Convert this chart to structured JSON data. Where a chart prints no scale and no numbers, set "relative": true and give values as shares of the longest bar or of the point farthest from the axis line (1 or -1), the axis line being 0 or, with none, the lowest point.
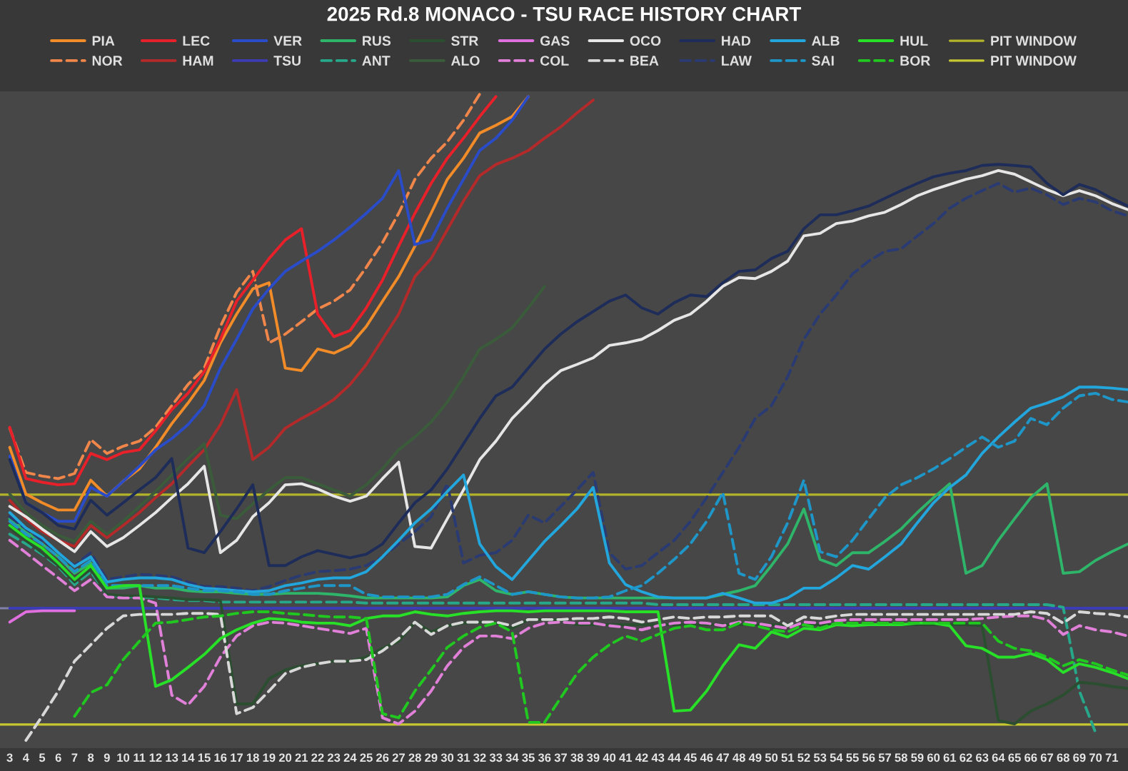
{
  "chart_data": {
    "type": "line",
    "title": "2025 Rd.8 MONACO - TSU RACE HISTORY CHART",
    "relative": true,
    "legend": "top",
    "line_style": "solid",
    "x": [
      3,
      4,
      5,
      6,
      7,
      8,
      9,
      10,
      11,
      12,
      13,
      14,
      15,
      16,
      17,
      18,
      19,
      20,
      21,
      22,
      23,
      24,
      25,
      26,
      27,
      28,
      29,
      30,
      31,
      32,
      33,
      34,
      35,
      36,
      37,
      38,
      39,
      40,
      41,
      42,
      43,
      44,
      45,
      46,
      47,
      48,
      49,
      50,
      51,
      52,
      53,
      54,
      55,
      56,
      57,
      58,
      59,
      60,
      61,
      62,
      63,
      64,
      65,
      66,
      67,
      68,
      69,
      70,
      71,
      72
    ],
    "xlim": [
      2.4,
      72.0
    ],
    "xticks": [
      3,
      4,
      5,
      6,
      7,
      8,
      9,
      10,
      11,
      12,
      13,
      14,
      15,
      16,
      17,
      18,
      19,
      20,
      21,
      22,
      23,
      24,
      25,
      26,
      27,
      28,
      29,
      30,
      31,
      32,
      33,
      34,
      35,
      36,
      37,
      38,
      39,
      40,
      41,
      42,
      43,
      44,
      45,
      46,
      47,
      48,
      49,
      50,
      51,
      52,
      53,
      54,
      55,
      56,
      57,
      58,
      59,
      60,
      61,
      62,
      63,
      64,
      65,
      66,
      67,
      68,
      69,
      70,
      71
    ],
    "ref_lines": [
      {
        "axis": "y",
        "value": 0.221,
        "label": "PIT WINDOW",
        "color": "#b4b42a"
      },
      {
        "axis": "y",
        "value": -0.226,
        "label": "PIT WINDOW",
        "color": "#c8c830"
      }
    ],
    "series": [
      {
        "name": "PIA",
        "color": "#f28c28",
        "values": [
          0.313,
          0.222,
          0.205,
          0.191,
          0.191,
          0.249,
          0.218,
          0.247,
          0.271,
          0.313,
          0.359,
          0.399,
          0.443,
          0.516,
          0.572,
          0.621,
          0.633,
          0.467,
          0.462,
          0.504,
          0.496,
          0.511,
          0.548,
          0.597,
          0.645,
          0.704,
          0.768,
          0.834,
          0.875,
          0.924,
          0.939,
          0.956,
          0.995,
          null,
          null,
          null,
          null,
          null,
          null,
          null,
          null,
          null,
          null,
          null,
          null,
          null,
          null,
          null,
          null,
          null,
          null,
          null,
          null,
          null,
          null,
          null,
          null,
          null,
          null,
          null,
          null,
          null,
          null,
          null,
          null,
          null,
          null,
          null,
          null,
          null
        ]
      },
      {
        "name": "NOR",
        "color": "#f0864a",
        "line_style": "dashed",
        "values": [
          0.35,
          0.264,
          0.257,
          0.252,
          0.262,
          0.328,
          0.301,
          0.315,
          0.325,
          0.352,
          0.394,
          0.435,
          0.467,
          0.548,
          0.614,
          0.655,
          0.516,
          0.533,
          0.557,
          0.582,
          0.597,
          0.619,
          0.663,
          0.711,
          0.768,
          0.834,
          0.875,
          0.907,
          0.949,
          1.0,
          null,
          null,
          null,
          null,
          null,
          null,
          null,
          null,
          null,
          null,
          null,
          null,
          null,
          null,
          null,
          null,
          null,
          null,
          null,
          null,
          null,
          null,
          null,
          null,
          null,
          null,
          null,
          null,
          null,
          null,
          null,
          null,
          null,
          null,
          null,
          null,
          null,
          null,
          null,
          null
        ]
      },
      {
        "name": "LEC",
        "color": "#e8202a",
        "values": [
          0.352,
          0.252,
          0.245,
          0.24,
          0.242,
          0.301,
          0.289,
          0.303,
          0.308,
          0.345,
          0.386,
          0.418,
          0.46,
          0.523,
          0.597,
          0.638,
          0.68,
          0.716,
          0.738,
          0.572,
          0.528,
          0.54,
          0.584,
          0.638,
          0.704,
          0.768,
          0.826,
          0.875,
          0.914,
          0.956,
          0.995,
          null,
          null,
          null,
          null,
          null,
          null,
          null,
          null,
          null,
          null,
          null,
          null,
          null,
          null,
          null,
          null,
          null,
          null,
          null,
          null,
          null,
          null,
          null,
          null,
          null,
          null,
          null,
          null,
          null,
          null,
          null,
          null,
          null,
          null,
          null,
          null,
          null,
          null,
          null
        ]
      },
      {
        "name": "HAM",
        "color": "#b42a2a",
        "values": [
          0.21,
          0.174,
          0.149,
          0.132,
          0.12,
          0.161,
          0.137,
          0.161,
          0.186,
          0.215,
          0.242,
          0.276,
          0.308,
          0.357,
          0.425,
          0.289,
          0.313,
          0.35,
          0.369,
          0.386,
          0.406,
          0.435,
          0.474,
          0.523,
          0.572,
          0.645,
          0.68,
          0.736,
          0.792,
          0.841,
          0.863,
          0.875,
          0.89,
          0.914,
          0.936,
          0.963,
          0.988,
          null,
          null,
          null,
          null,
          null,
          null,
          null,
          null,
          null,
          null,
          null,
          null,
          null,
          null,
          null,
          null,
          null,
          null,
          null,
          null,
          null,
          null,
          null,
          null,
          null,
          null,
          null,
          null,
          null,
          null,
          null,
          null,
          null
        ]
      },
      {
        "name": "VER",
        "color": "#2a4cc8",
        "values": [
          0.296,
          0.205,
          0.186,
          0.169,
          0.169,
          0.235,
          0.218,
          0.247,
          0.276,
          0.308,
          0.33,
          0.357,
          0.394,
          0.467,
          0.523,
          0.582,
          0.621,
          0.655,
          0.675,
          0.694,
          0.716,
          0.741,
          0.768,
          0.797,
          0.851,
          0.707,
          0.716,
          0.778,
          0.834,
          0.89,
          0.914,
          0.949,
          0.995,
          null,
          null,
          null,
          null,
          null,
          null,
          null,
          null,
          null,
          null,
          null,
          null,
          null,
          null,
          null,
          null,
          null,
          null,
          null,
          null,
          null,
          null,
          null,
          null,
          null,
          null,
          null,
          null,
          null,
          null,
          null,
          null,
          null,
          null,
          null,
          null,
          null
        ]
      },
      {
        "name": "TSU",
        "color": "#3c3cb4",
        "values": [
          0,
          0,
          0,
          0,
          0,
          0,
          0,
          0,
          0,
          0,
          0,
          0,
          0,
          0,
          0,
          0,
          0,
          0,
          0,
          0,
          0,
          0,
          0,
          0,
          0,
          0,
          0,
          0,
          0,
          0,
          0,
          0,
          0,
          0,
          0,
          0,
          0,
          0,
          0,
          0,
          0,
          0,
          0,
          0,
          0,
          0,
          0,
          0,
          0,
          0,
          0,
          0,
          0,
          0,
          0,
          0,
          0,
          0,
          0,
          0,
          0,
          0,
          0,
          0,
          0,
          0,
          0,
          0,
          0,
          0
        ]
      },
      {
        "name": "RUS",
        "color": "#2fb56a",
        "values": [
          0.174,
          0.149,
          0.125,
          0.1,
          0.068,
          0.088,
          0.039,
          0.039,
          0.044,
          0.039,
          0.039,
          0.034,
          0.032,
          0.032,
          0.029,
          0.027,
          0.027,
          0.029,
          0.029,
          0.029,
          0.027,
          0.024,
          0.02,
          0.02,
          0.02,
          0.02,
          0.02,
          0.022,
          0.044,
          0.056,
          0.034,
          0.027,
          0.032,
          0.027,
          0.022,
          0.02,
          0.02,
          0.02,
          0.02,
          0.02,
          0.02,
          0.02,
          0.02,
          0.02,
          0.027,
          0.034,
          0.044,
          0.083,
          0.125,
          0.193,
          0.095,
          0.083,
          0.108,
          0.108,
          0.13,
          0.154,
          0.186,
          0.215,
          0.242,
          0.068,
          0.083,
          0.132,
          0.174,
          0.215,
          0.242,
          0.068,
          0.071,
          0.093,
          0.11,
          0.125
        ]
      },
      {
        "name": "ANT",
        "color": "#27a88a",
        "line_style": "dashed",
        "values": [
          0.144,
          0.125,
          0.105,
          0.081,
          0.046,
          0.071,
          0.027,
          0.022,
          0.022,
          0.02,
          0.017,
          0.015,
          0.015,
          0.012,
          0.012,
          0.012,
          0.012,
          0.012,
          0.012,
          0.012,
          0.012,
          0.012,
          0.01,
          0.01,
          0.01,
          0.01,
          0.01,
          0.01,
          0.01,
          0.01,
          0.01,
          0.01,
          0.01,
          0.01,
          0.01,
          0.01,
          0.01,
          0.01,
          0.01,
          0.01,
          0.007,
          0.007,
          0.007,
          0.007,
          0.007,
          0.007,
          0.007,
          0.007,
          0.007,
          0.007,
          0.007,
          0.007,
          0.007,
          0.007,
          0.007,
          0.007,
          0.007,
          0.007,
          0.007,
          0.007,
          0.007,
          0.007,
          0.007,
          0.007,
          0.007,
          0.002,
          -0.161,
          -0.242,
          null,
          null
        ]
      },
      {
        "name": "STR",
        "color": "#2b4e30",
        "values": [
          0.156,
          0.132,
          0.108,
          0.083,
          0.051,
          0.076,
          0.027,
          0.024,
          0.024,
          0.022,
          0.02,
          0.017,
          0.017,
          0.015,
          -0.186,
          -0.186,
          -0.137,
          -0.12,
          -0.112,
          -0.108,
          -0.103,
          -0.103,
          -0.095,
          -0.078,
          -0.064,
          -0.027,
          -0.046,
          -0.034,
          -0.029,
          -0.027,
          -0.029,
          -0.039,
          -0.022,
          -0.022,
          -0.022,
          -0.032,
          -0.032,
          -0.032,
          -0.032,
          -0.032,
          -0.032,
          -0.032,
          -0.032,
          -0.032,
          -0.032,
          -0.032,
          -0.032,
          -0.032,
          -0.032,
          -0.032,
          -0.032,
          -0.032,
          -0.032,
          -0.032,
          -0.032,
          -0.032,
          -0.032,
          -0.032,
          -0.032,
          -0.032,
          -0.034,
          -0.218,
          -0.225,
          -0.2,
          -0.186,
          -0.169,
          -0.144,
          -0.147,
          -0.152,
          -0.156
        ]
      },
      {
        "name": "ALO",
        "color": "#3a5c3a",
        "values": [
          0.222,
          0.186,
          0.161,
          0.142,
          0.13,
          0.169,
          0.144,
          0.169,
          0.198,
          0.227,
          0.259,
          0.291,
          0.32,
          0.181,
          0.174,
          0.203,
          0.23,
          0.254,
          0.254,
          0.242,
          0.23,
          0.218,
          0.24,
          0.271,
          0.308,
          0.333,
          0.362,
          0.401,
          0.45,
          0.504,
          0.523,
          0.545,
          0.584,
          0.626,
          null,
          null,
          null,
          null,
          null,
          null,
          null,
          null,
          null,
          null,
          null,
          null,
          null,
          null,
          null,
          null,
          null,
          null,
          null,
          null,
          null,
          null,
          null,
          null,
          null,
          null,
          null,
          null,
          null,
          null,
          null,
          null,
          null,
          null,
          null,
          null
        ]
      },
      {
        "name": "GAS",
        "color": "#e070e0",
        "values": [
          -0.027,
          -0.007,
          -0.005,
          -0.005,
          -0.005,
          null,
          null,
          null,
          null,
          null,
          null,
          null,
          null,
          null,
          null,
          null,
          null,
          null,
          null,
          null,
          null,
          null,
          null,
          null,
          null,
          null,
          null,
          null,
          null,
          null,
          null,
          null,
          null,
          null,
          null,
          null,
          null,
          null,
          null,
          null,
          null,
          null,
          null,
          null,
          null,
          null,
          null,
          null,
          null,
          null,
          null,
          null,
          null,
          null,
          null,
          null,
          null,
          null,
          null,
          null,
          null,
          null,
          null,
          null,
          null,
          null,
          null,
          null,
          null,
          null
        ]
      },
      {
        "name": "COL",
        "color": "#e080d8",
        "line_style": "dashed",
        "values": [
          0.132,
          0.108,
          0.083,
          0.059,
          0.034,
          0.056,
          0.022,
          0.02,
          0.02,
          0.01,
          -0.169,
          -0.188,
          -0.152,
          -0.095,
          -0.054,
          -0.034,
          -0.027,
          -0.029,
          -0.034,
          -0.039,
          -0.044,
          -0.049,
          -0.039,
          -0.213,
          -0.225,
          -0.2,
          -0.161,
          -0.112,
          -0.076,
          -0.054,
          -0.054,
          -0.059,
          -0.039,
          -0.029,
          -0.027,
          -0.029,
          -0.029,
          -0.034,
          -0.037,
          -0.042,
          -0.034,
          -0.029,
          -0.027,
          -0.029,
          -0.034,
          -0.027,
          -0.029,
          -0.034,
          -0.039,
          -0.027,
          -0.029,
          -0.024,
          -0.022,
          -0.022,
          -0.022,
          -0.022,
          -0.022,
          -0.022,
          -0.022,
          -0.022,
          -0.02,
          -0.017,
          -0.015,
          -0.015,
          -0.022,
          -0.051,
          -0.034,
          -0.042,
          -0.046,
          -0.054
        ]
      },
      {
        "name": "OCO",
        "color": "#e6e6e6",
        "values": [
          0.198,
          0.178,
          0.154,
          0.132,
          0.11,
          0.149,
          0.12,
          0.137,
          0.161,
          0.186,
          0.215,
          0.242,
          0.276,
          0.108,
          0.132,
          0.178,
          0.205,
          0.24,
          0.242,
          0.232,
          0.218,
          0.208,
          0.218,
          0.252,
          0.284,
          0.12,
          0.117,
          0.174,
          0.23,
          0.289,
          0.325,
          0.369,
          0.401,
          0.435,
          0.462,
          0.474,
          0.487,
          0.511,
          0.516,
          0.523,
          0.54,
          0.56,
          0.572,
          0.597,
          0.626,
          0.643,
          0.641,
          0.655,
          0.675,
          0.724,
          0.729,
          0.748,
          0.753,
          0.763,
          0.77,
          0.785,
          0.802,
          0.814,
          0.824,
          0.834,
          0.841,
          0.851,
          0.844,
          0.829,
          0.814,
          0.802,
          0.812,
          0.802,
          0.787,
          0.775
        ]
      },
      {
        "name": "BEA",
        "color": "#d8d8d8",
        "line_style": "dashed",
        "values": [
          null,
          -0.257,
          -0.21,
          -0.161,
          -0.103,
          -0.071,
          -0.039,
          -0.015,
          -0.012,
          -0.012,
          -0.012,
          -0.01,
          -0.01,
          -0.012,
          -0.205,
          -0.193,
          -0.161,
          -0.127,
          -0.115,
          -0.108,
          -0.103,
          -0.103,
          -0.1,
          -0.083,
          -0.059,
          -0.027,
          -0.051,
          -0.034,
          -0.027,
          -0.027,
          -0.027,
          -0.034,
          -0.022,
          -0.022,
          -0.022,
          -0.02,
          -0.02,
          -0.017,
          -0.02,
          -0.027,
          -0.022,
          -0.017,
          -0.02,
          -0.017,
          -0.017,
          -0.015,
          -0.015,
          -0.015,
          -0.034,
          -0.017,
          -0.02,
          -0.015,
          -0.012,
          -0.012,
          -0.012,
          -0.012,
          -0.012,
          -0.012,
          -0.012,
          -0.012,
          -0.012,
          -0.012,
          -0.012,
          -0.007,
          -0.01,
          -0.029,
          -0.007,
          -0.01,
          -0.012,
          -0.017
        ]
      },
      {
        "name": "HAD",
        "color": "#1e2c5a",
        "values": [
          0.289,
          0.205,
          0.186,
          0.161,
          0.154,
          0.21,
          0.181,
          0.205,
          0.23,
          0.254,
          0.291,
          0.117,
          0.108,
          0.149,
          0.193,
          0.24,
          0.083,
          0.083,
          0.1,
          0.112,
          0.105,
          0.098,
          0.105,
          0.125,
          0.166,
          0.205,
          0.23,
          0.271,
          0.32,
          0.369,
          0.413,
          0.43,
          0.467,
          0.504,
          0.533,
          0.557,
          0.577,
          0.597,
          0.609,
          0.584,
          0.572,
          0.594,
          0.609,
          0.606,
          0.633,
          0.655,
          0.658,
          0.68,
          0.694,
          0.738,
          0.765,
          0.765,
          0.773,
          0.782,
          0.797,
          0.812,
          0.826,
          0.839,
          0.846,
          0.851,
          0.861,
          0.863,
          0.861,
          0.858,
          0.826,
          0.804,
          0.824,
          0.814,
          0.797,
          0.782
        ]
      },
      {
        "name": "LAW",
        "color": "#2a3a72",
        "line_style": "dashed",
        "values": [
          0.178,
          0.154,
          0.132,
          0.108,
          0.083,
          0.108,
          0.056,
          0.061,
          0.066,
          0.064,
          0.061,
          0.051,
          0.042,
          0.042,
          0.039,
          0.034,
          0.042,
          0.054,
          0.064,
          0.071,
          0.073,
          0.076,
          0.083,
          0.1,
          0.125,
          0.149,
          0.178,
          0.242,
          0.088,
          0.103,
          0.108,
          0.132,
          0.181,
          0.166,
          0.198,
          0.23,
          0.264,
          0.108,
          0.076,
          0.083,
          0.108,
          0.132,
          0.169,
          0.215,
          0.264,
          0.313,
          0.369,
          0.394,
          0.45,
          0.523,
          0.572,
          0.609,
          0.65,
          0.675,
          0.694,
          0.699,
          0.724,
          0.748,
          0.778,
          0.797,
          0.812,
          0.826,
          0.809,
          0.817,
          0.804,
          0.785,
          0.797,
          0.79,
          0.773,
          0.763
        ]
      },
      {
        "name": "ALB",
        "color": "#22a6dc",
        "values": [
          0.186,
          0.156,
          0.137,
          0.108,
          0.081,
          0.1,
          0.051,
          0.056,
          0.059,
          0.059,
          0.056,
          0.046,
          0.039,
          0.037,
          0.034,
          0.032,
          0.034,
          0.044,
          0.049,
          0.056,
          0.059,
          0.059,
          0.071,
          0.1,
          0.132,
          0.166,
          0.193,
          0.227,
          0.259,
          0.125,
          0.081,
          0.056,
          0.093,
          0.13,
          0.161,
          0.193,
          0.235,
          0.088,
          0.046,
          0.032,
          0.022,
          0.02,
          0.02,
          0.02,
          0.029,
          0.02,
          0.01,
          0.01,
          0.02,
          0.039,
          0.039,
          0.059,
          0.083,
          0.076,
          0.1,
          0.125,
          0.166,
          0.205,
          0.235,
          0.259,
          0.301,
          0.333,
          0.362,
          0.389,
          0.399,
          0.411,
          0.43,
          0.43,
          0.428,
          0.425
        ]
      },
      {
        "name": "SAI",
        "color": "#1e96c8",
        "line_style": "dashed",
        "values": [
          0.169,
          0.144,
          0.125,
          0.1,
          0.071,
          0.093,
          0.044,
          0.044,
          0.044,
          0.044,
          0.044,
          0.039,
          0.034,
          0.034,
          0.032,
          0.027,
          0.027,
          0.034,
          0.039,
          0.044,
          0.044,
          0.044,
          0.027,
          0.022,
          0.022,
          0.022,
          0.022,
          0.027,
          0.046,
          0.061,
          0.044,
          0.027,
          0.032,
          0.027,
          0.022,
          0.02,
          0.02,
          0.022,
          0.034,
          0.044,
          0.068,
          0.095,
          0.125,
          0.169,
          0.225,
          0.068,
          0.056,
          0.1,
          0.166,
          0.249,
          0.11,
          0.1,
          0.132,
          0.174,
          0.215,
          0.24,
          0.254,
          0.271,
          0.291,
          0.313,
          0.333,
          0.313,
          0.325,
          0.369,
          0.357,
          0.389,
          0.413,
          0.418,
          0.406,
          0.401
        ]
      },
      {
        "name": "HUL",
        "color": "#28e028",
        "values": [
          0.161,
          0.137,
          0.117,
          0.088,
          0.056,
          0.083,
          0.039,
          0.044,
          0.044,
          -0.152,
          -0.139,
          -0.115,
          -0.09,
          -0.059,
          -0.042,
          -0.029,
          -0.02,
          -0.022,
          -0.027,
          -0.029,
          -0.029,
          -0.034,
          -0.02,
          -0.015,
          -0.015,
          -0.007,
          -0.012,
          -0.015,
          -0.01,
          -0.007,
          -0.005,
          -0.005,
          -0.007,
          -0.005,
          -0.005,
          -0.005,
          -0.005,
          -0.005,
          -0.007,
          -0.007,
          -0.007,
          -0.2,
          -0.198,
          -0.161,
          -0.112,
          -0.071,
          -0.078,
          -0.046,
          -0.056,
          -0.039,
          -0.042,
          -0.032,
          -0.034,
          -0.032,
          -0.032,
          -0.032,
          -0.029,
          -0.029,
          -0.034,
          -0.073,
          -0.078,
          -0.095,
          -0.095,
          -0.088,
          -0.1,
          -0.125,
          -0.108,
          -0.115,
          -0.125,
          -0.137
        ]
      },
      {
        "name": "BOR",
        "color": "#20c820",
        "line_style": "dashed",
        "values": [
          null,
          null,
          null,
          null,
          -0.21,
          -0.164,
          -0.149,
          -0.1,
          -0.064,
          -0.029,
          -0.027,
          -0.022,
          -0.017,
          -0.015,
          -0.01,
          -0.007,
          -0.007,
          -0.01,
          -0.012,
          -0.015,
          -0.017,
          -0.017,
          -0.02,
          -0.205,
          -0.213,
          -0.161,
          -0.12,
          -0.076,
          -0.054,
          -0.037,
          -0.029,
          -0.046,
          -0.222,
          -0.222,
          -0.174,
          -0.127,
          -0.095,
          -0.071,
          -0.054,
          -0.064,
          -0.051,
          -0.039,
          -0.034,
          -0.042,
          -0.042,
          -0.029,
          -0.034,
          -0.042,
          -0.046,
          -0.032,
          -0.039,
          -0.029,
          -0.029,
          -0.029,
          -0.029,
          -0.029,
          -0.029,
          -0.029,
          -0.029,
          -0.029,
          -0.029,
          -0.064,
          -0.078,
          -0.083,
          -0.095,
          -0.112,
          -0.1,
          -0.108,
          -0.12,
          -0.13
        ]
      }
    ]
  }
}
